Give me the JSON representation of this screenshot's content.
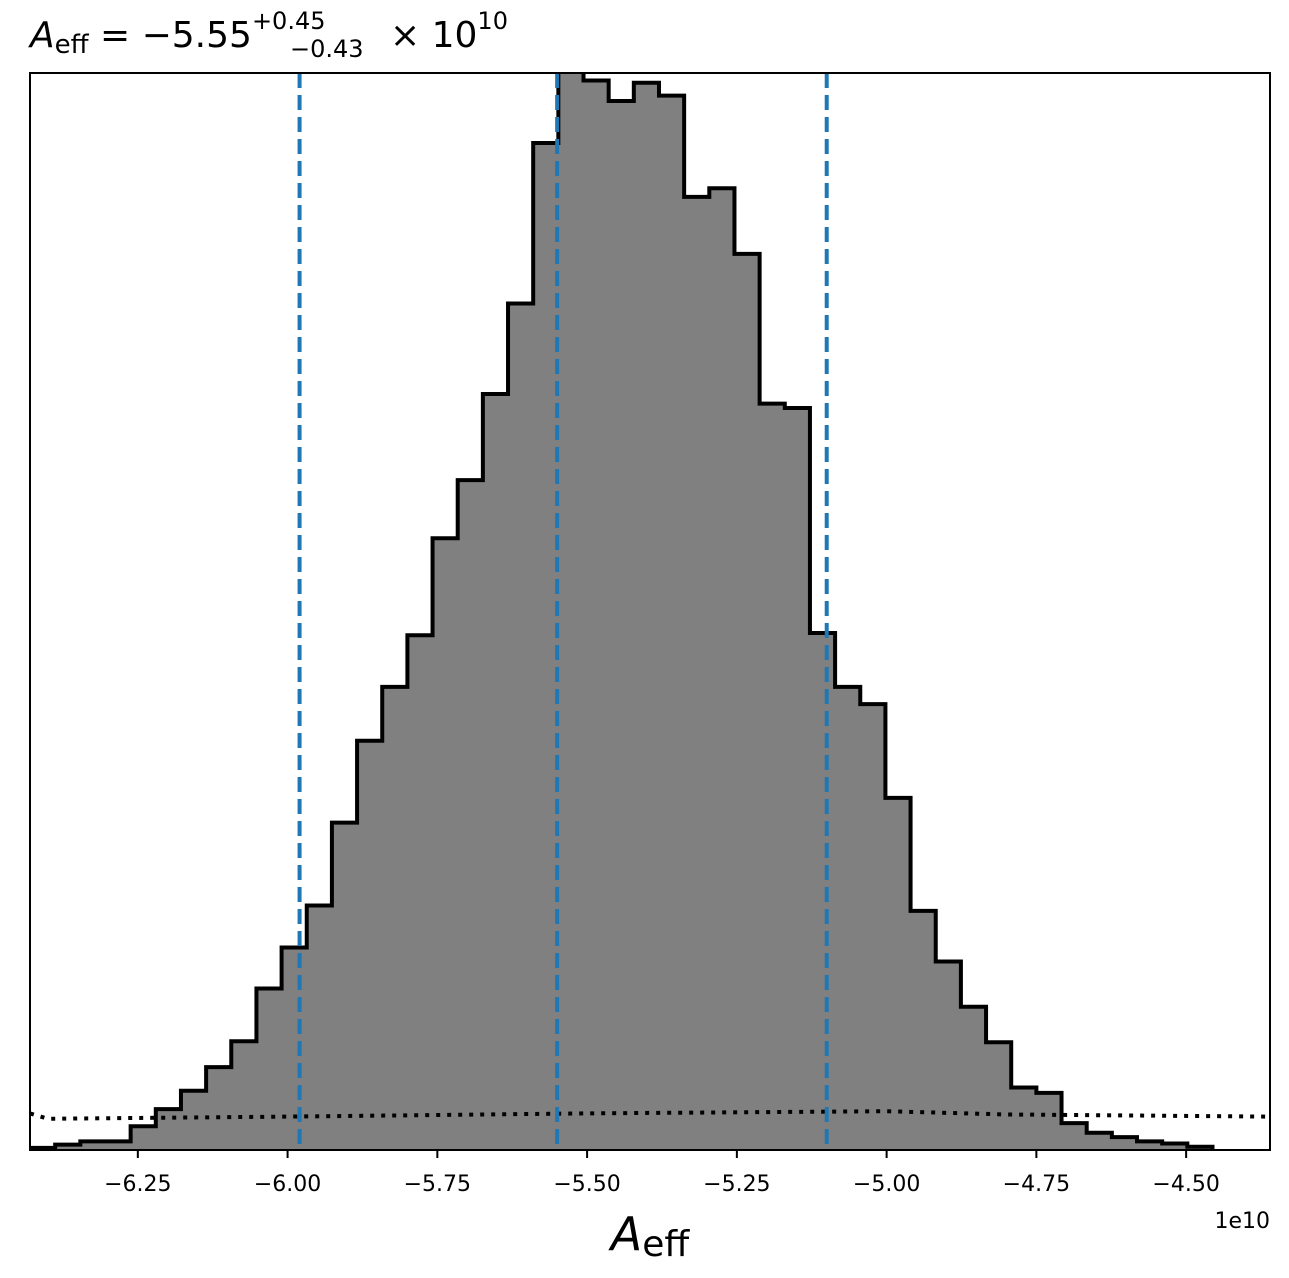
{
  "chart_data": {
    "type": "histogram",
    "title": {
      "symbol": "A",
      "symbol_sub": "eff",
      "value": "−5.55",
      "err_plus": "+0.45",
      "err_minus": "−0.43",
      "times": "× 10",
      "exp": "10"
    },
    "xlabel": {
      "symbol": "A",
      "sub": "eff"
    },
    "x_offset_label": "1e10",
    "xlim": [
      -6.43,
      -4.36
    ],
    "ylim": [
      0,
      1.0
    ],
    "xticks": [
      -6.25,
      -6.0,
      -5.75,
      -5.5,
      -5.25,
      -5.0,
      -4.75,
      -4.5
    ],
    "xtick_labels": [
      "−6.25",
      "−6.00",
      "−5.75",
      "−5.50",
      "−5.25",
      "−5.00",
      "−4.75",
      "−4.50"
    ],
    "bins": {
      "edges": [
        -6.43,
        -6.388,
        -6.346,
        -6.304,
        -6.262,
        -6.22,
        -6.178,
        -6.136,
        -6.094,
        -6.052,
        -6.01,
        -5.968,
        -5.926,
        -5.884,
        -5.842,
        -5.8,
        -5.758,
        -5.716,
        -5.674,
        -5.632,
        -5.59,
        -5.548,
        -5.506,
        -5.464,
        -5.422,
        -5.38,
        -5.338,
        -5.296,
        -5.254,
        -5.212,
        -5.17,
        -5.128,
        -5.086,
        -5.044,
        -5.002,
        -4.96,
        -4.918,
        -4.876,
        -4.834,
        -4.792,
        -4.75,
        -4.708,
        -4.666,
        -4.624,
        -4.582,
        -4.54,
        -4.498,
        -4.456
      ],
      "heights": [
        0.002,
        0.005,
        0.008,
        0.008,
        0.022,
        0.038,
        0.055,
        0.077,
        0.101,
        0.15,
        0.188,
        0.227,
        0.304,
        0.38,
        0.43,
        0.478,
        0.568,
        0.622,
        0.702,
        0.786,
        0.935,
        1.01,
        0.993,
        0.974,
        0.991,
        0.979,
        0.885,
        0.893,
        0.832,
        0.693,
        0.689,
        0.48,
        0.43,
        0.414,
        0.327,
        0.222,
        0.175,
        0.133,
        0.1,
        0.058,
        0.053,
        0.025,
        0.016,
        0.012,
        0.008,
        0.006,
        0.003
      ]
    },
    "quantiles": [
      -5.98,
      -5.55,
      -5.1
    ],
    "prior_line": {
      "x": [
        -6.43,
        -6.4,
        -6.0,
        -5.5,
        -5.0,
        -4.8,
        -4.36
      ],
      "y": [
        0.034,
        0.029,
        0.031,
        0.034,
        0.036,
        0.033,
        0.031
      ]
    },
    "colors": {
      "fill": "#808080",
      "edge": "#000000",
      "quantile": "#1f77b4",
      "prior": "#000000"
    }
  }
}
